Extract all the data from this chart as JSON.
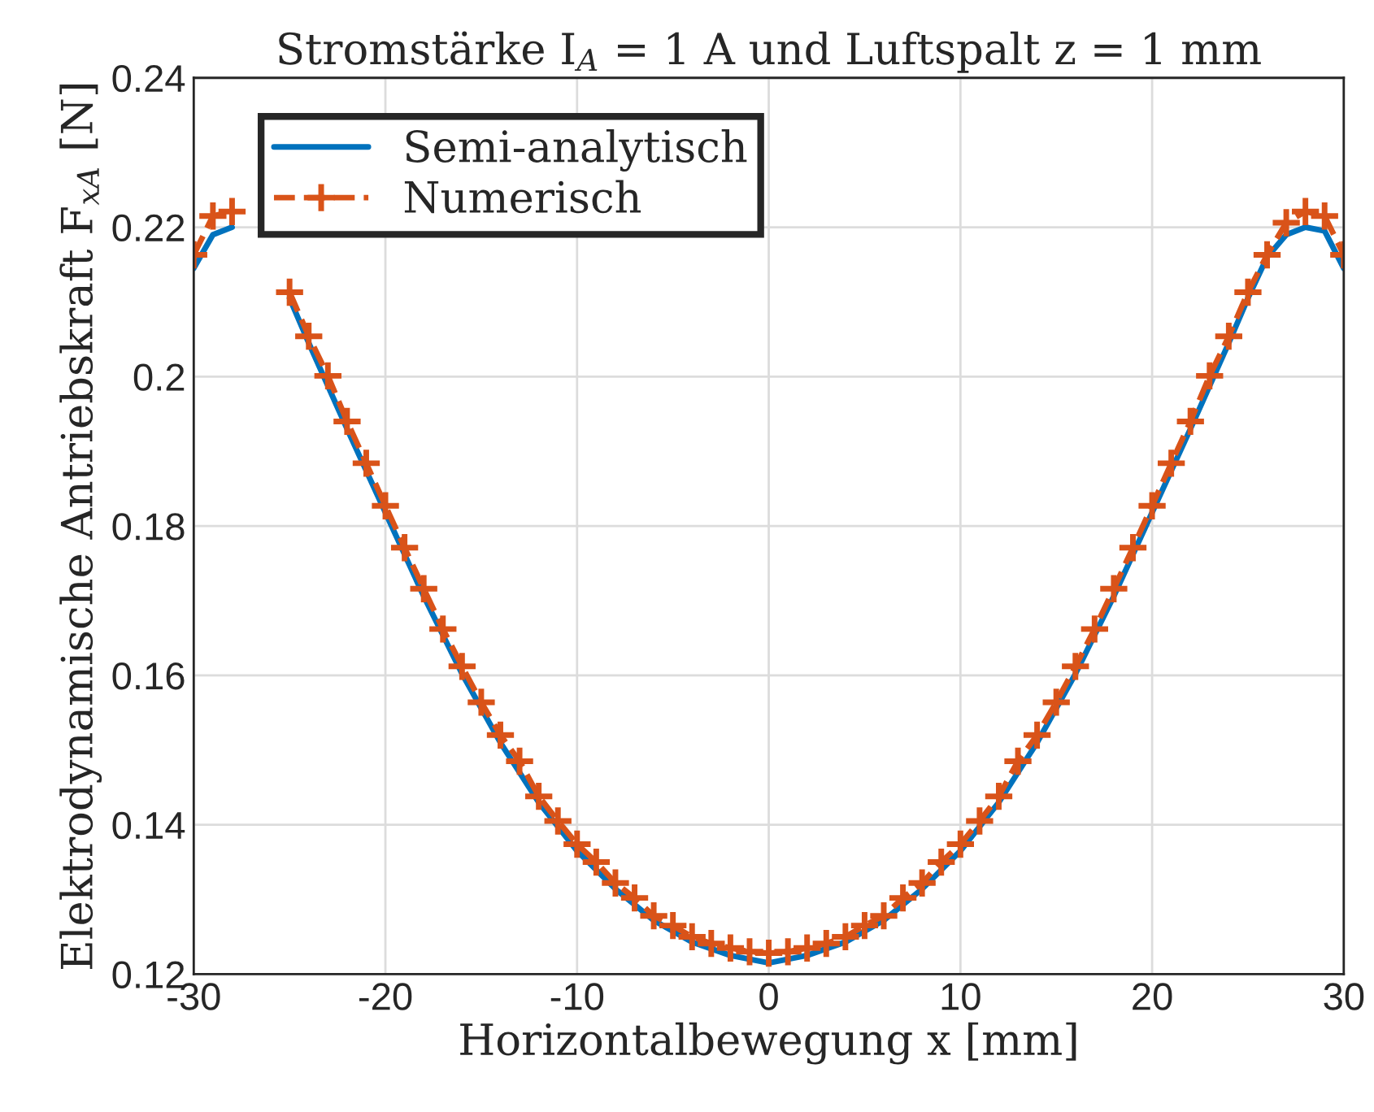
{
  "chart_data": {
    "type": "line",
    "title": "Stromstärke I$_{A}$ = 1 A und Luftspalt z = 1 mm",
    "xlabel": "Horizontalbewegung x [mm]",
    "ylabel": "Elektrodynamische Antriebskraft F$_{xA}$ [N]",
    "xlim": [
      -30,
      30
    ],
    "xticks": [
      -30,
      -20,
      -10,
      0,
      10,
      20,
      30
    ],
    "ylim": [
      0.12,
      0.24
    ],
    "yticks": [
      0.12,
      0.14,
      0.16,
      0.18,
      0.2,
      0.22,
      0.24
    ],
    "grid": true,
    "legend": "top left",
    "series": [
      {
        "name": "Semi-analytisch",
        "color": "#0072bd",
        "marker": "none",
        "line_style": "solid",
        "x": [
          -30,
          -29,
          -28,
          -27,
          -26,
          -25,
          -24,
          -22,
          -20,
          -18,
          -16,
          -14,
          -12,
          -10,
          -8,
          -6,
          -4,
          -2,
          0,
          2,
          4,
          6,
          8,
          10,
          12,
          14,
          16,
          18,
          20,
          22,
          24,
          25,
          26,
          27,
          28,
          29,
          30
        ],
        "values": [
          0.2145,
          0.219,
          0.22,
          null,
          null,
          0.2105,
          0.2045,
          0.193,
          0.1818,
          0.1706,
          0.1602,
          0.151,
          0.143,
          0.1365,
          0.1314,
          0.1272,
          0.1243,
          0.1225,
          0.1215,
          0.1225,
          0.1243,
          0.1272,
          0.1314,
          0.1365,
          0.143,
          0.151,
          0.1602,
          0.1706,
          0.1818,
          0.193,
          0.2045,
          0.2105,
          0.216,
          0.219,
          0.22,
          0.2195,
          0.2145
        ]
      },
      {
        "name": "Numerisch",
        "color": "#d95319",
        "marker": "cross",
        "line_style": "dashed",
        "x": [
          -30,
          -29,
          -28,
          -27,
          -26,
          -25,
          -24,
          -23,
          -22,
          -21,
          -20,
          -19,
          -18,
          -17,
          -16,
          -15,
          -14,
          -13,
          -12,
          -11,
          -10,
          -9,
          -8,
          -7,
          -6,
          -5,
          -4,
          -3,
          -2,
          -1,
          0,
          1,
          2,
          3,
          4,
          5,
          6,
          7,
          8,
          9,
          10,
          11,
          12,
          13,
          14,
          15,
          16,
          17,
          18,
          19,
          20,
          21,
          22,
          23,
          24,
          25,
          26,
          27,
          28,
          29,
          30
        ],
        "values": [
          0.2163,
          0.2215,
          0.2221,
          null,
          null,
          0.2113,
          0.2054,
          0.2001,
          0.194,
          0.1884,
          0.1827,
          0.1771,
          0.1716,
          0.1662,
          0.1612,
          0.1564,
          0.152,
          0.1485,
          0.1438,
          0.1405,
          0.1374,
          0.135,
          0.1322,
          0.1302,
          0.1278,
          0.1265,
          0.125,
          0.1241,
          0.1235,
          0.123,
          0.1228,
          0.123,
          0.1235,
          0.1241,
          0.125,
          0.1265,
          0.1278,
          0.1302,
          0.1322,
          0.135,
          0.1374,
          0.1405,
          0.1438,
          0.1485,
          0.152,
          0.1564,
          0.1612,
          0.1662,
          0.1716,
          0.1771,
          0.1827,
          0.1884,
          0.194,
          0.2001,
          0.2054,
          0.2113,
          0.2163,
          0.2206,
          0.2221,
          0.2215,
          0.2163
        ]
      }
    ]
  }
}
